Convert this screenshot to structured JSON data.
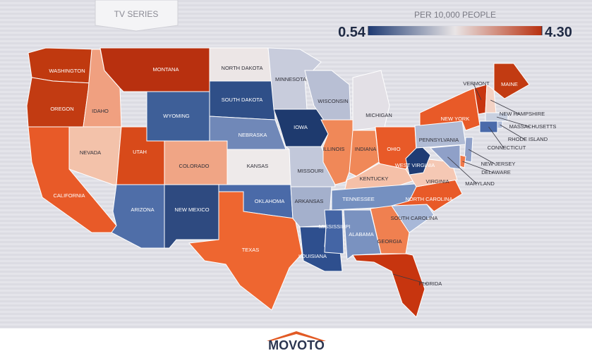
{
  "header": {
    "tab": "TV SERIES"
  },
  "legend": {
    "title": "PER 10,000 PEOPLE",
    "min": 0.54,
    "max": {
      "value": 4.3,
      "label": "4.30"
    },
    "colors": [
      "#1f3b73",
      "#e9e5e6",
      "#b8300f"
    ]
  },
  "states": [
    {
      "label": "WASHINGTON",
      "color": "#c0390f"
    },
    {
      "label": "OREGON",
      "color": "#c23b12"
    },
    {
      "label": "CALIFORNIA",
      "color": "#e85a28"
    },
    {
      "label": "IDAHO",
      "color": "#f0a080"
    },
    {
      "label": "NEVADA",
      "color": "#f3c2aa"
    },
    {
      "label": "MONTANA",
      "color": "#b8300f"
    },
    {
      "label": "WYOMING",
      "color": "#3e5f98"
    },
    {
      "label": "UTAH",
      "color": "#d84a1a"
    },
    {
      "label": "COLORADO",
      "color": "#f0a585"
    },
    {
      "label": "ARIZONA",
      "color": "#4f6ea8"
    },
    {
      "label": "NEW MEXICO",
      "color": "#2e4a80"
    },
    {
      "label": "NORTH DAKOTA",
      "color": "#ece6e6"
    },
    {
      "label": "SOUTH DAKOTA",
      "color": "#2f4f88"
    },
    {
      "label": "NEBRASKA",
      "color": "#7088b8"
    },
    {
      "label": "KANSAS",
      "color": "#eeeaea"
    },
    {
      "label": "OKLAHOMA",
      "color": "#4a6aa8"
    },
    {
      "label": "TEXAS",
      "color": "#ee6630"
    },
    {
      "label": "MINNESOTA",
      "color": "#c8ccdc"
    },
    {
      "label": "IOWA",
      "color": "#1e3a6e"
    },
    {
      "label": "MISSOURI",
      "color": "#c2c8da"
    },
    {
      "label": "ARKANSAS",
      "color": "#a4b0cc"
    },
    {
      "label": "LOUISIANA",
      "color": "#2e4f8e"
    },
    {
      "label": "WISCONSIN",
      "color": "#b8bfd4"
    },
    {
      "label": "ILLINOIS",
      "color": "#f08858"
    },
    {
      "label": "MICHIGAN",
      "color": "#e3e0e6"
    },
    {
      "label": "INDIANA",
      "color": "#f08858"
    },
    {
      "label": "OHIO",
      "color": "#e85a28"
    },
    {
      "label": "KENTUCKY",
      "color": "#f5c0a8"
    },
    {
      "label": "TENNESSEE",
      "color": "#7590c0"
    },
    {
      "label": "MISSISSIPPI",
      "color": "#4465a5"
    },
    {
      "label": "ALABAMA",
      "color": "#7a92c0"
    },
    {
      "label": "GEORGIA",
      "color": "#f08050"
    },
    {
      "label": "FLORIDA",
      "color": "#c7350f"
    },
    {
      "label": "SOUTH CAROLINA",
      "color": "#a8b8d8"
    },
    {
      "label": "NORTH CAROLINA",
      "color": "#e85a28"
    },
    {
      "label": "VIRGINIA",
      "color": "#f5c8b4"
    },
    {
      "label": "WEST VIRGINIA",
      "color": "#1f3c74"
    },
    {
      "label": "PENNSYLVANIA",
      "color": "#b0bbd4"
    },
    {
      "label": "NEW YORK",
      "color": "#e85a28"
    },
    {
      "label": "VERMONT",
      "color": "#c7350f"
    },
    {
      "label": "NEW HAMPSHIRE",
      "color": "#f3d2c4"
    },
    {
      "label": "MAINE",
      "color": "#c23b12"
    },
    {
      "label": "MASSACHUSETTS",
      "color": "#c8d0e0"
    },
    {
      "label": "RHODE ISLAND",
      "color": "#b0bcd8"
    },
    {
      "label": "CONNECTICUT",
      "color": "#4a6aaa"
    },
    {
      "label": "NEW JERSEY",
      "color": "#8fa0c8"
    },
    {
      "label": "DELAWARE",
      "color": "#f07848"
    },
    {
      "label": "MARYLAND",
      "color": "#8fa0c8"
    }
  ],
  "footer": {
    "logo": "MOVOTO"
  }
}
